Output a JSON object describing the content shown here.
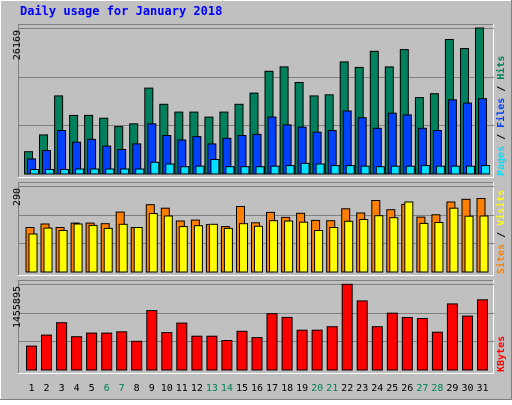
{
  "title": "Daily usage for January 2018",
  "colors": {
    "background": "#c0c0c0",
    "title": "#0000ff",
    "axis_max_text": "#000000",
    "weekday_label": "#000000",
    "weekend_label": "#00805c",
    "hits": "#00805c",
    "files": "#0040ff",
    "pages": "#00e0ff",
    "visits": "#ffff00",
    "sites": "#ff8000",
    "kbytes": "#ff0000"
  },
  "chart_data": [
    {
      "type": "bar",
      "title": "Daily usage for January 2018",
      "categories": [
        "1",
        "2",
        "3",
        "4",
        "5",
        "6",
        "7",
        "8",
        "9",
        "10",
        "11",
        "12",
        "13",
        "14",
        "15",
        "16",
        "17",
        "18",
        "19",
        "20",
        "21",
        "22",
        "23",
        "24",
        "25",
        "26",
        "27",
        "28",
        "29",
        "30",
        "31"
      ],
      "weekend_days": [
        "6",
        "7",
        "13",
        "14",
        "20",
        "21",
        "27",
        "28"
      ],
      "ylim": [
        0,
        26169
      ],
      "y_max_label": "26169",
      "legend": [
        "Pages",
        "Files",
        "Hits"
      ],
      "series": [
        {
          "name": "Hits",
          "values": [
            4000,
            7000,
            14000,
            10500,
            10500,
            10000,
            8500,
            9000,
            15400,
            12500,
            11100,
            11100,
            10200,
            11100,
            12500,
            14500,
            18400,
            19200,
            16400,
            14000,
            14200,
            20100,
            19100,
            22000,
            19200,
            22300,
            13700,
            14400,
            24100,
            22500,
            26169
          ]
        },
        {
          "name": "Files",
          "values": [
            2700,
            4200,
            7800,
            5700,
            6200,
            5000,
            4400,
            5400,
            9000,
            6900,
            6100,
            6700,
            5400,
            6400,
            6900,
            7100,
            10200,
            8800,
            8400,
            7500,
            7800,
            11300,
            10100,
            8200,
            10900,
            10600,
            8200,
            7800,
            13300,
            12700,
            13500
          ]
        },
        {
          "name": "Pages",
          "values": [
            800,
            800,
            800,
            900,
            900,
            900,
            900,
            900,
            2100,
            1800,
            1300,
            1400,
            2600,
            1300,
            1300,
            1300,
            1400,
            1500,
            1900,
            1800,
            1500,
            1500,
            1400,
            1300,
            1400,
            1400,
            1500,
            1400,
            1400,
            1400,
            1500
          ]
        }
      ]
    },
    {
      "type": "bar",
      "categories": [
        "1",
        "2",
        "3",
        "4",
        "5",
        "6",
        "7",
        "8",
        "9",
        "10",
        "11",
        "12",
        "13",
        "14",
        "15",
        "16",
        "17",
        "18",
        "19",
        "20",
        "21",
        "22",
        "23",
        "24",
        "25",
        "26",
        "27",
        "28",
        "29",
        "30",
        "31"
      ],
      "ylim": [
        0,
        290
      ],
      "y_max_label": "290",
      "legend": [
        "Sites",
        "Visits"
      ],
      "series": [
        {
          "name": "Sites",
          "values": [
            150,
            162,
            150,
            165,
            165,
            163,
            202,
            150,
            227,
            215,
            172,
            175,
            160,
            153,
            221,
            166,
            201,
            184,
            198,
            174,
            173,
            213,
            199,
            241,
            210,
            228,
            185,
            193,
            236,
            245,
            248
          ]
        },
        {
          "name": "Visits",
          "values": [
            128,
            148,
            140,
            162,
            157,
            147,
            161,
            150,
            197,
            189,
            153,
            156,
            161,
            147,
            163,
            154,
            173,
            172,
            168,
            140,
            150,
            171,
            177,
            190,
            183,
            236,
            164,
            167,
            215,
            188,
            189
          ]
        }
      ]
    },
    {
      "type": "bar",
      "categories": [
        "1",
        "2",
        "3",
        "4",
        "5",
        "6",
        "7",
        "8",
        "9",
        "10",
        "11",
        "12",
        "13",
        "14",
        "15",
        "16",
        "17",
        "18",
        "19",
        "20",
        "21",
        "22",
        "23",
        "24",
        "25",
        "26",
        "27",
        "28",
        "29",
        "30",
        "31"
      ],
      "ylim": [
        0,
        1455895
      ],
      "y_max_label": "1455895",
      "legend": [
        "KBytes"
      ],
      "series": [
        {
          "name": "KBytes",
          "values": [
            404000,
            590000,
            800000,
            563000,
            625000,
            625000,
            647000,
            486000,
            1006000,
            633000,
            794000,
            573000,
            573000,
            500000,
            655000,
            548000,
            953000,
            891000,
            673000,
            673000,
            733000,
            1450000,
            1170000,
            733000,
            962000,
            889000,
            871000,
            640000,
            1119000,
            913000,
            1189000
          ]
        }
      ]
    }
  ]
}
